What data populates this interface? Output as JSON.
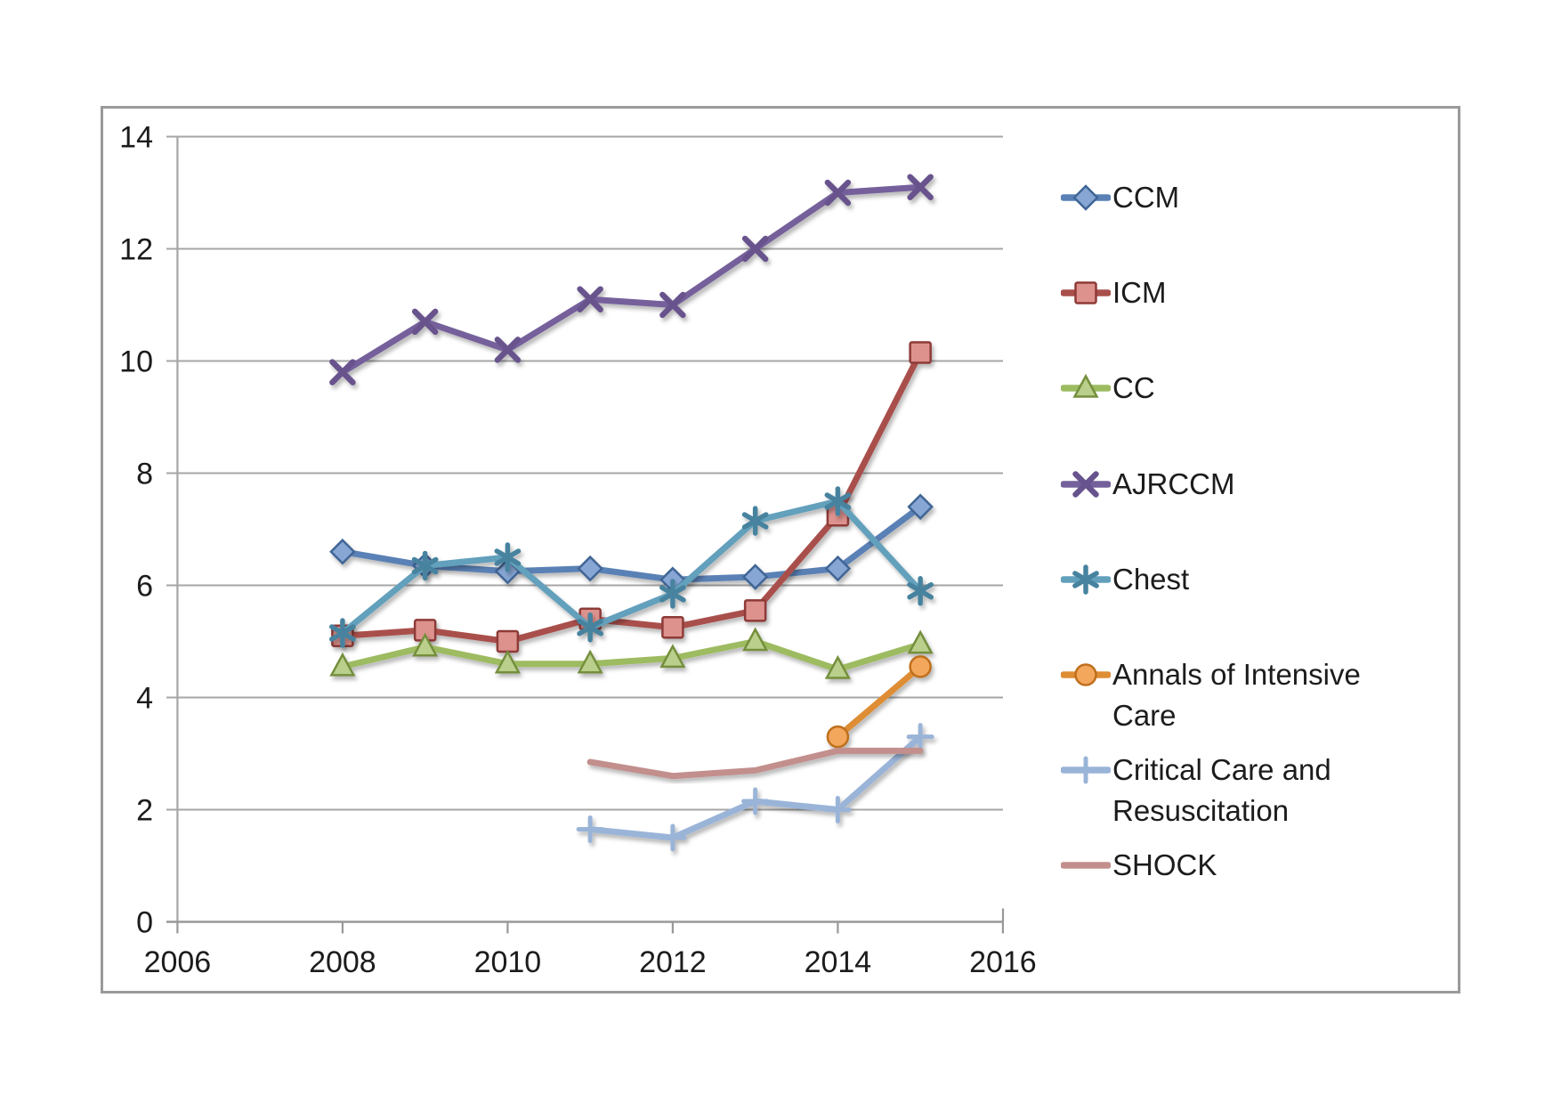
{
  "chart_data": {
    "type": "line",
    "title": "",
    "xlabel": "",
    "ylabel": "",
    "xlim": [
      2006,
      2016
    ],
    "ylim": [
      0,
      14
    ],
    "x_ticks": [
      2006,
      2008,
      2010,
      2012,
      2014,
      2016
    ],
    "y_ticks": [
      0,
      2,
      4,
      6,
      8,
      10,
      12,
      14
    ],
    "grid": "horizontal",
    "legend_position": "right",
    "axis_color": "#a6a6a6",
    "text_color": "#1c1c1c",
    "series": [
      {
        "name": "CCM",
        "marker": "diamond",
        "line_color": "#5a81b5",
        "marker_fill": "#87a6d4",
        "marker_stroke": "#3f6596",
        "points": [
          [
            2008,
            6.6
          ],
          [
            2009,
            6.35
          ],
          [
            2010,
            6.25
          ],
          [
            2011,
            6.3
          ],
          [
            2012,
            6.1
          ],
          [
            2013,
            6.15
          ],
          [
            2014,
            6.3
          ],
          [
            2015,
            7.4
          ]
        ]
      },
      {
        "name": "ICM",
        "marker": "square",
        "line_color": "#a94f4b",
        "marker_fill": "#dd928e",
        "marker_stroke": "#8e3a37",
        "points": [
          [
            2008,
            5.1
          ],
          [
            2009,
            5.2
          ],
          [
            2010,
            5.0
          ],
          [
            2011,
            5.4
          ],
          [
            2012,
            5.25
          ],
          [
            2013,
            5.55
          ],
          [
            2014,
            7.25
          ],
          [
            2015,
            10.15
          ]
        ]
      },
      {
        "name": "CC",
        "marker": "triangle",
        "line_color": "#9dbb61",
        "marker_fill": "#b9cf8b",
        "marker_stroke": "#748f3d",
        "points": [
          [
            2008,
            4.55
          ],
          [
            2009,
            4.9
          ],
          [
            2010,
            4.6
          ],
          [
            2011,
            4.6
          ],
          [
            2012,
            4.7
          ],
          [
            2013,
            5.0
          ],
          [
            2014,
            4.5
          ],
          [
            2015,
            4.95
          ]
        ]
      },
      {
        "name": "AJRCCM",
        "marker": "x",
        "line_color": "#74619b",
        "marker_stroke": "#67538d",
        "points": [
          [
            2008,
            9.8
          ],
          [
            2009,
            10.7
          ],
          [
            2010,
            10.2
          ],
          [
            2011,
            11.1
          ],
          [
            2012,
            11.0
          ],
          [
            2013,
            12.0
          ],
          [
            2014,
            13.0
          ],
          [
            2015,
            13.1
          ]
        ]
      },
      {
        "name": "Chest",
        "marker": "asterisk",
        "line_color": "#62a0bc",
        "marker_stroke": "#47839f",
        "points": [
          [
            2008,
            5.15
          ],
          [
            2009,
            6.35
          ],
          [
            2010,
            6.5
          ],
          [
            2011,
            5.25
          ],
          [
            2012,
            5.85
          ],
          [
            2013,
            7.15
          ],
          [
            2014,
            7.5
          ],
          [
            2015,
            5.9
          ]
        ]
      },
      {
        "name": "Annals of Intensive Care",
        "marker": "circle",
        "line_color": "#de8d35",
        "marker_fill": "#f3a75c",
        "marker_stroke": "#bf6f1d",
        "points": [
          [
            2014,
            3.3
          ],
          [
            2015,
            4.55
          ]
        ]
      },
      {
        "name": "Critical Care and Resuscitation",
        "marker": "plus",
        "line_color": "#9ab4d8",
        "marker_stroke": "#9ab4d8",
        "points": [
          [
            2011,
            1.65
          ],
          [
            2012,
            1.5
          ],
          [
            2013,
            2.15
          ],
          [
            2014,
            2.0
          ],
          [
            2015,
            3.3
          ]
        ]
      },
      {
        "name": "SHOCK",
        "marker": "none",
        "line_color": "#c28f8d",
        "points": [
          [
            2011,
            2.85
          ],
          [
            2012,
            2.6
          ],
          [
            2013,
            2.7
          ],
          [
            2014,
            3.05
          ],
          [
            2015,
            3.05
          ]
        ]
      }
    ]
  }
}
